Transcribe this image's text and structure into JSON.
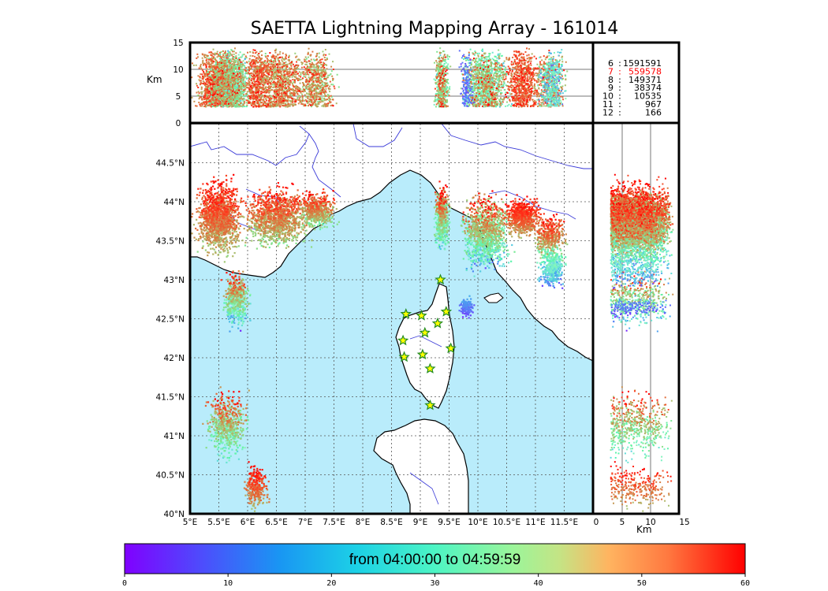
{
  "chart_data": {
    "type": "scatter",
    "title": "SAETTA Lightning Mapping Array - 161014",
    "panels": {
      "map": {
        "xlabel": "",
        "ylabel": "",
        "xlim": [
          5,
          12
        ],
        "ylim": [
          40,
          45
        ],
        "x_tick_labels": [
          "5°E",
          "5.5°E",
          "6°E",
          "6.5°E",
          "7°E",
          "7.5°E",
          "8°E",
          "8.5°E",
          "9°E",
          "9.5°E",
          "10°E",
          "10.5°E",
          "11°E",
          "11.5°E"
        ],
        "x_tick_values": [
          5,
          5.5,
          6,
          6.5,
          7,
          7.5,
          8,
          8.5,
          9,
          9.5,
          10,
          10.5,
          11,
          11.5
        ],
        "y_tick_labels": [
          "40°N",
          "40.5°N",
          "41°N",
          "41.5°N",
          "42°N",
          "42.5°N",
          "43°N",
          "43.5°N",
          "44°N",
          "44.5°N"
        ],
        "y_tick_values": [
          40,
          40.5,
          41,
          41.5,
          42,
          42.5,
          43,
          43.5,
          44,
          44.5
        ],
        "grid": true,
        "sea_color": "#b9ecfb",
        "land_color": "#ffffff",
        "stations": [
          {
            "lon": 9.35,
            "lat": 43.0
          },
          {
            "lon": 8.75,
            "lat": 42.56
          },
          {
            "lon": 9.02,
            "lat": 42.54
          },
          {
            "lon": 9.45,
            "lat": 42.59
          },
          {
            "lon": 9.3,
            "lat": 42.44
          },
          {
            "lon": 9.08,
            "lat": 42.32
          },
          {
            "lon": 8.7,
            "lat": 42.22
          },
          {
            "lon": 9.53,
            "lat": 42.12
          },
          {
            "lon": 8.72,
            "lat": 42.01
          },
          {
            "lon": 9.04,
            "lat": 42.04
          },
          {
            "lon": 9.17,
            "lat": 41.86
          },
          {
            "lon": 9.17,
            "lat": 41.39
          }
        ],
        "clusters": [
          {
            "lon": [
              5.0,
              6.0
            ],
            "lat": [
              43.2,
              44.4
            ],
            "t": [
              35,
              60
            ],
            "n": 1400
          },
          {
            "lon": [
              5.8,
              7.2
            ],
            "lat": [
              43.3,
              44.3
            ],
            "t": [
              30,
              60
            ],
            "n": 1200
          },
          {
            "lon": [
              6.8,
              7.6
            ],
            "lat": [
              43.6,
              44.2
            ],
            "t": [
              25,
              60
            ],
            "n": 600
          },
          {
            "lon": [
              5.5,
              6.1
            ],
            "lat": [
              42.3,
              43.2
            ],
            "t": [
              0,
              60
            ],
            "n": 500
          },
          {
            "lon": [
              5.2,
              6.1
            ],
            "lat": [
              40.6,
              41.7
            ],
            "t": [
              10,
              60
            ],
            "n": 600
          },
          {
            "lon": [
              5.9,
              6.4
            ],
            "lat": [
              40.0,
              40.7
            ],
            "t": [
              40,
              60
            ],
            "n": 300
          },
          {
            "lon": [
              9.2,
              9.55
            ],
            "lat": [
              43.3,
              44.3
            ],
            "t": [
              5,
              60
            ],
            "n": 500
          },
          {
            "lon": [
              9.6,
              10.7
            ],
            "lat": [
              43.0,
              44.2
            ],
            "t": [
              0,
              60
            ],
            "n": 1200
          },
          {
            "lon": [
              10.4,
              11.2
            ],
            "lat": [
              43.5,
              44.1
            ],
            "t": [
              40,
              60
            ],
            "n": 700
          },
          {
            "lon": [
              10.9,
              11.6
            ],
            "lat": [
              43.2,
              43.9
            ],
            "t": [
              30,
              60
            ],
            "n": 400
          },
          {
            "lon": [
              11.0,
              11.6
            ],
            "lat": [
              42.8,
              43.5
            ],
            "t": [
              0,
              35
            ],
            "n": 400
          },
          {
            "lon": [
              9.65,
              9.95
            ],
            "lat": [
              42.5,
              42.8
            ],
            "t": [
              0,
              15
            ],
            "n": 150
          }
        ]
      },
      "top": {
        "ylabel": "Km",
        "xlim": [
          5,
          12
        ],
        "ylim": [
          0,
          15
        ],
        "y_tick_labels": [
          "0",
          "5",
          "10",
          "15"
        ],
        "y_tick_values": [
          0,
          5,
          10,
          15
        ]
      },
      "right": {
        "xlabel": "Km",
        "xlim": [
          0,
          15
        ],
        "ylim": [
          40,
          45
        ],
        "x_tick_labels": [
          "0",
          "5",
          "10",
          "15"
        ],
        "x_tick_values": [
          0,
          5,
          10,
          15
        ]
      }
    },
    "legend": {
      "placement": "top-right",
      "entries": [
        {
          "stations": "6",
          "count": "1591591",
          "color": "#000000"
        },
        {
          "stations": "7",
          "count": "559578",
          "color": "#ff0000"
        },
        {
          "stations": "8",
          "count": "149371",
          "color": "#000000"
        },
        {
          "stations": "9",
          "count": "38374",
          "color": "#000000"
        },
        {
          "stations": "10",
          "count": "10535",
          "color": "#000000"
        },
        {
          "stations": "11",
          "count": "967",
          "color": "#000000"
        },
        {
          "stations": "12",
          "count": "166",
          "color": "#000000"
        }
      ]
    },
    "colorbar": {
      "label": "from 04:00:00 to 04:59:59",
      "range": [
        0,
        60
      ],
      "tick_labels": [
        "0",
        "10",
        "20",
        "30",
        "40",
        "50",
        "60"
      ],
      "tick_values": [
        0,
        10,
        20,
        30,
        40,
        50,
        60
      ],
      "colormap": "rainbow"
    }
  }
}
